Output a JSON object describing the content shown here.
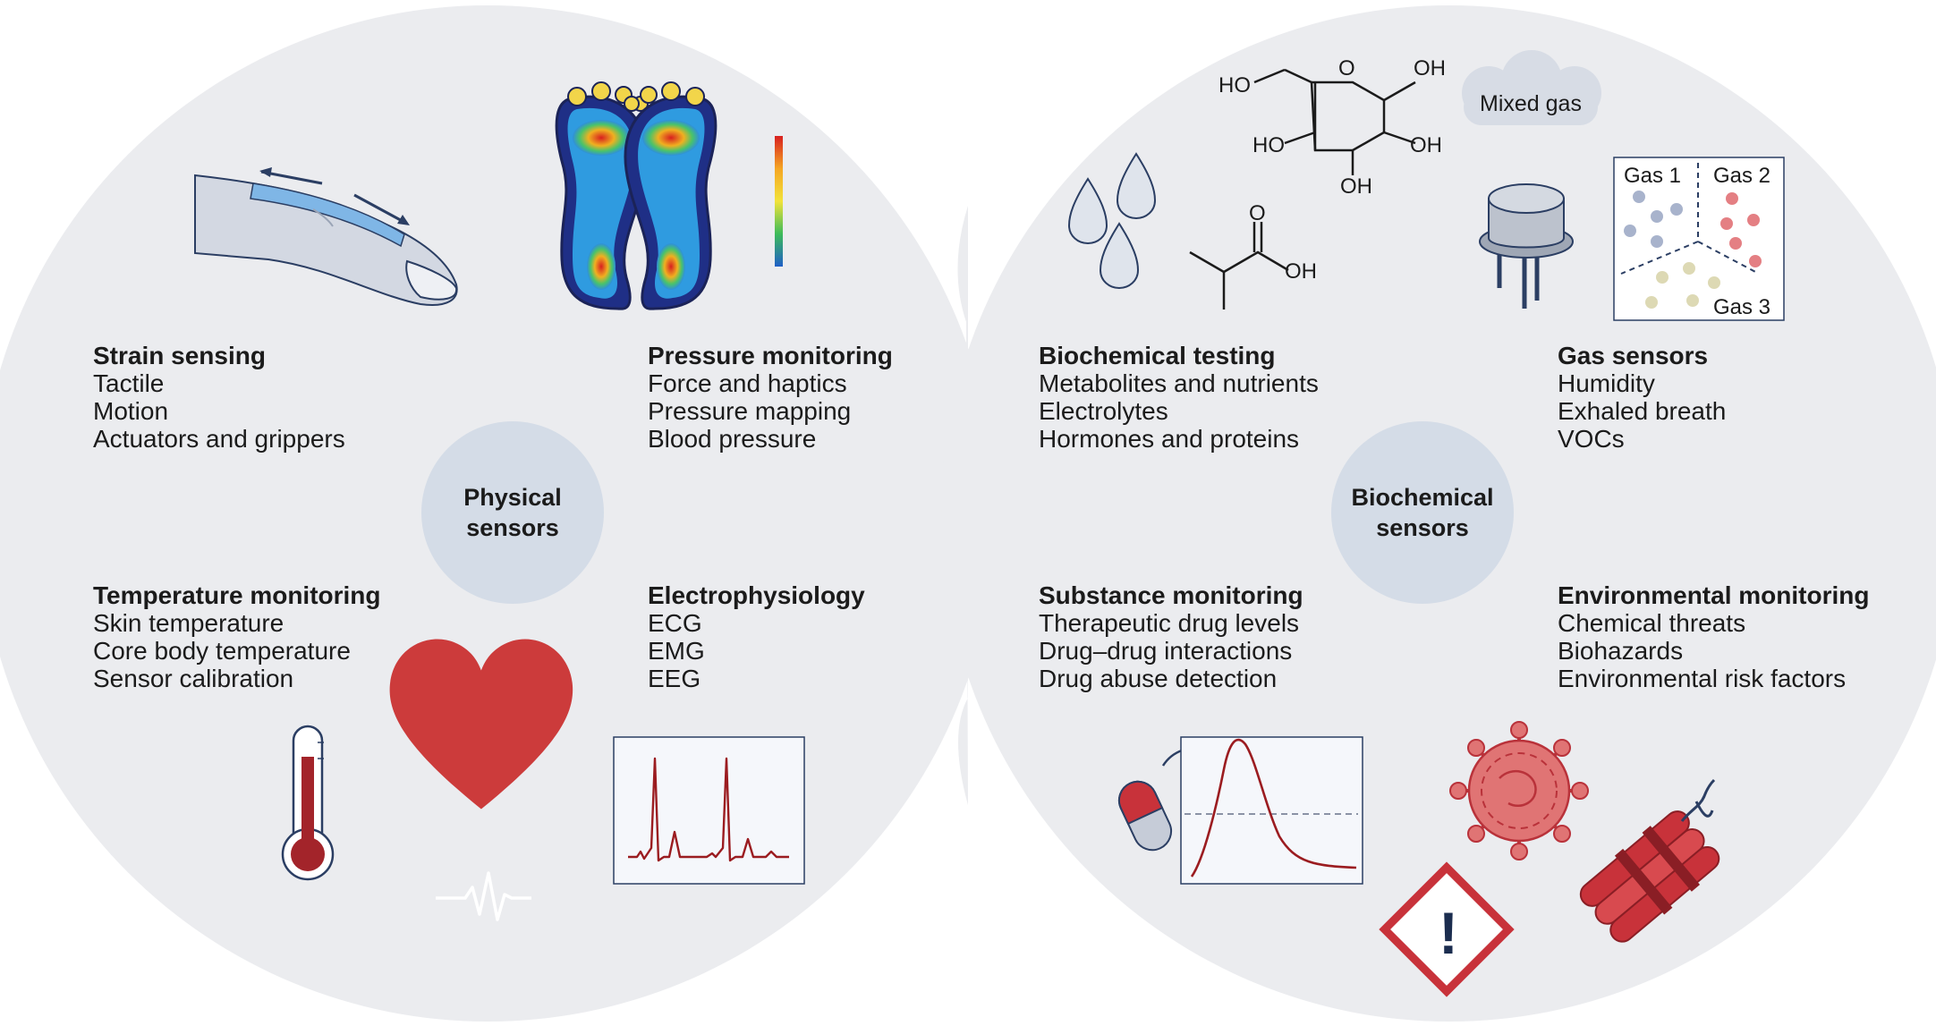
{
  "colors": {
    "panel": "#ebecef",
    "hub": "#d4dce7",
    "ecg_red": "#9b1c20",
    "heart_red": "#cc3b3b",
    "hazard_red": "#c8323a",
    "sensor_dark": "#1b2d4f"
  },
  "hubs": {
    "physical": {
      "line1": "Physical",
      "line2": "sensors"
    },
    "biochemical": {
      "line1": "Biochemical",
      "line2": "sensors"
    }
  },
  "categories": {
    "strain": {
      "title": "Strain sensing",
      "items": [
        "Tactile",
        "Motion",
        "Actuators and grippers"
      ]
    },
    "pressure": {
      "title": "Pressure monitoring",
      "items": [
        "Force and haptics",
        "Pressure mapping",
        "Blood pressure"
      ]
    },
    "temperature": {
      "title": "Temperature monitoring",
      "items": [
        "Skin temperature",
        "Core body temperature",
        "Sensor calibration"
      ]
    },
    "electro": {
      "title": "Electrophysiology",
      "items": [
        "ECG",
        "EMG",
        "EEG"
      ]
    },
    "biochem": {
      "title": "Biochemical testing",
      "items": [
        "Metabolites and nutrients",
        "Electrolytes",
        "Hormones and proteins"
      ]
    },
    "gas": {
      "title": "Gas sensors",
      "items": [
        "Humidity",
        "Exhaled breath",
        "VOCs"
      ]
    },
    "substance": {
      "title": "Substance monitoring",
      "items": [
        "Therapeutic drug levels",
        "Drug–drug interactions",
        "Drug abuse detection"
      ]
    },
    "environment": {
      "title": "Environmental monitoring",
      "items": [
        "Chemical threats",
        "Biohazards",
        "Environmental risk factors"
      ]
    }
  },
  "illustrations": {
    "cloud": "Mixed gas",
    "gas_labels": [
      "Gas 1",
      "Gas 2",
      "Gas 3"
    ],
    "glucose": {
      "o": "O",
      "oh_right_top": "OH",
      "ho_left_top": "HO",
      "ho_left": "HO",
      "oh_right": "OH",
      "oh_bottom": "OH"
    },
    "acid": {
      "o": "O",
      "oh": "OH"
    },
    "hazard_symbol": "!",
    "icons": [
      "finger-icon",
      "footprint-pressure-map-icon",
      "thermometer-icon",
      "heart-icon",
      "ecg-chart-icon",
      "water-droplets-icon",
      "glucose-molecule-icon",
      "isobutyric-acid-icon",
      "gas-cloud-icon",
      "gas-sensor-icon",
      "gas-classification-icon",
      "pill-icon",
      "drug-concentration-chart-icon",
      "virus-icon",
      "hazard-sign-icon",
      "dynamite-icon"
    ]
  }
}
